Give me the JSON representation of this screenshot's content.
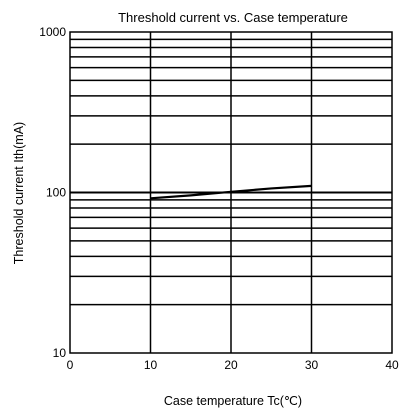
{
  "chart_data": {
    "type": "line",
    "title": "Threshold current vs. Case temperature",
    "xlabel": "Case temperature Tc(℃)",
    "ylabel": "Threshold current Ith(mA)",
    "x_scale": "linear",
    "y_scale": "log",
    "xlim": [
      0,
      40
    ],
    "ylim": [
      10,
      1000
    ],
    "x_ticks": [
      0,
      10,
      20,
      30,
      40
    ],
    "y_tick_labels": [
      {
        "value": 10,
        "label": "10"
      },
      {
        "value": 100,
        "label": "100"
      },
      {
        "value": 1000,
        "label": "1000"
      }
    ],
    "grid": true,
    "series": [
      {
        "x": [
          10,
          15,
          20,
          25,
          30
        ],
        "y": [
          92,
          96,
          101,
          106,
          110
        ]
      }
    ],
    "colors": {
      "line": "#000000",
      "grid": "#000000",
      "background": "#ffffff"
    }
  }
}
